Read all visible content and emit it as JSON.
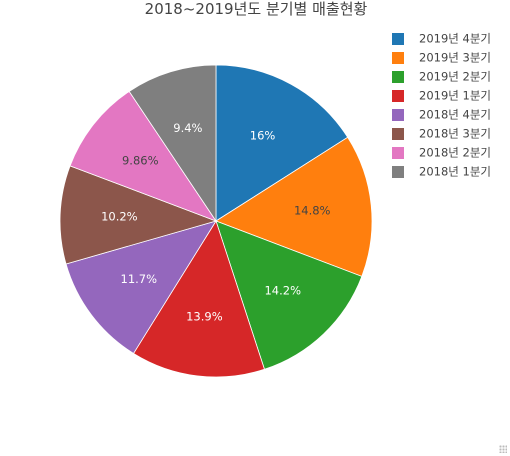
{
  "colors": {
    "title": "#444444",
    "legend_text": "#444444",
    "label_on_dark": "#ffffff",
    "label_on_light": "#444444"
  },
  "chart_data": {
    "type": "pie",
    "title": "2018~2019년도 분기별 매출현황",
    "sort": "descending",
    "direction": "clockwise",
    "start_angle_deg": 0,
    "legend_placement": "top-right",
    "slices": [
      {
        "label": "2019년 4분기",
        "value": 16.0,
        "text": "16%",
        "color": "#1f77b4",
        "text_color": "#ffffff"
      },
      {
        "label": "2019년 3분기",
        "value": 14.8,
        "text": "14.8%",
        "color": "#ff7f0e",
        "text_color": "#444444"
      },
      {
        "label": "2019년 2분기",
        "value": 14.2,
        "text": "14.2%",
        "color": "#2ca02c",
        "text_color": "#ffffff"
      },
      {
        "label": "2019년 1분기",
        "value": 13.9,
        "text": "13.9%",
        "color": "#d62728",
        "text_color": "#ffffff"
      },
      {
        "label": "2018년 4분기",
        "value": 11.7,
        "text": "11.7%",
        "color": "#9467bd",
        "text_color": "#ffffff"
      },
      {
        "label": "2018년 3분기",
        "value": 10.2,
        "text": "10.2%",
        "color": "#8c564b",
        "text_color": "#ffffff"
      },
      {
        "label": "2018년 2분기",
        "value": 9.86,
        "text": "9.86%",
        "color": "#e377c2",
        "text_color": "#444444"
      },
      {
        "label": "2018년 1분기",
        "value": 9.4,
        "text": "9.4%",
        "color": "#7f7f7f",
        "text_color": "#ffffff"
      }
    ]
  }
}
